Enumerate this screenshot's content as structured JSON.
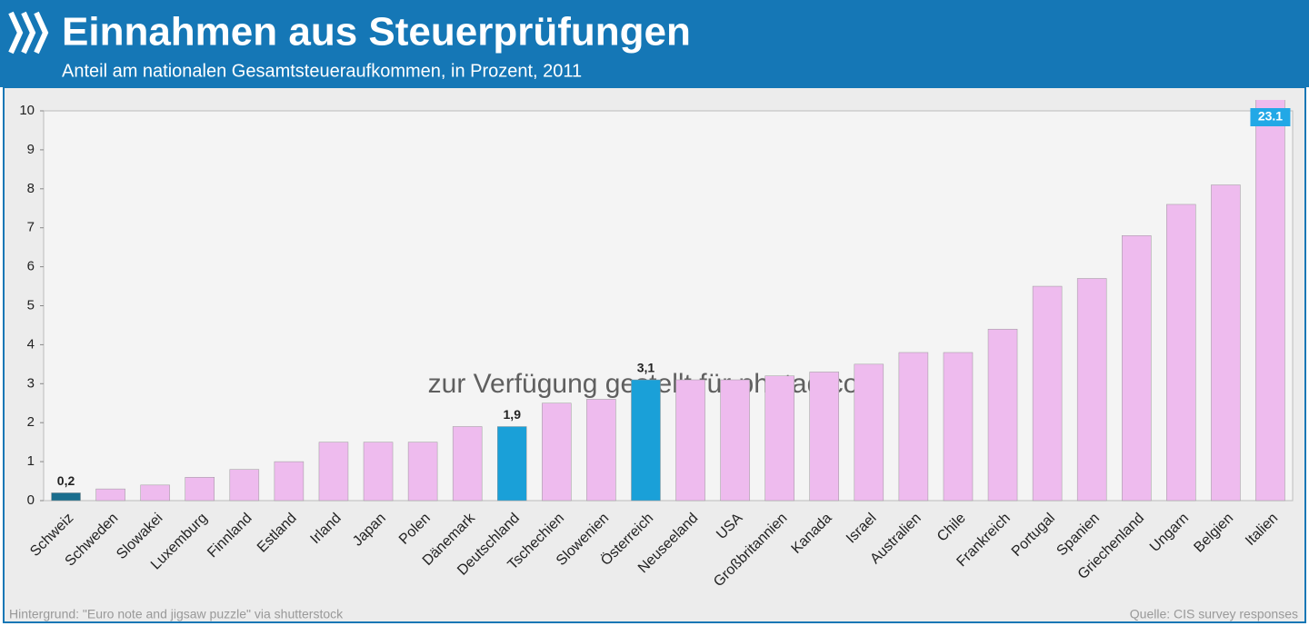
{
  "chart_data": {
    "type": "bar",
    "title": "Einnahmen aus Steuerprüfungen",
    "subtitle": "Anteil am nationalen Gesamtsteueraufkommen, in Prozent, 2011",
    "categories": [
      "Schweiz",
      "Schweden",
      "Slowakei",
      "Luxemburg",
      "Finnland",
      "Estland",
      "Irland",
      "Japan",
      "Polen",
      "Dänemark",
      "Deutschland",
      "Tschechien",
      "Slowenien",
      "Österreich",
      "Neuseeland",
      "USA",
      "Großbritannien",
      "Kanada",
      "Israel",
      "Australien",
      "Chile",
      "Frankreich",
      "Portugal",
      "Spanien",
      "Griechenland",
      "Ungarn",
      "Belgien",
      "Italien"
    ],
    "values": [
      0.2,
      0.3,
      0.4,
      0.6,
      0.8,
      1.0,
      1.5,
      1.5,
      1.5,
      1.9,
      1.9,
      2.5,
      2.6,
      3.1,
      3.1,
      3.1,
      3.2,
      3.3,
      3.5,
      3.8,
      3.8,
      4.4,
      5.5,
      5.7,
      6.8,
      7.6,
      8.1,
      23.1
    ],
    "value_labels": [
      "0,2",
      null,
      null,
      null,
      null,
      null,
      null,
      null,
      null,
      null,
      "1,9",
      null,
      null,
      "3,1",
      null,
      null,
      null,
      null,
      null,
      null,
      null,
      null,
      null,
      null,
      null,
      null,
      null,
      "23.1"
    ],
    "colors": [
      "#1a6e8e",
      "#eebbee",
      "#eebbee",
      "#eebbee",
      "#eebbee",
      "#eebbee",
      "#eebbee",
      "#eebbee",
      "#eebbee",
      "#eebbee",
      "#1aa0d8",
      "#eebbee",
      "#eebbee",
      "#1aa0d8",
      "#eebbee",
      "#eebbee",
      "#eebbee",
      "#eebbee",
      "#eebbee",
      "#eebbee",
      "#eebbee",
      "#eebbee",
      "#eebbee",
      "#eebbee",
      "#eebbee",
      "#eebbee",
      "#eebbee",
      "#eebbee"
    ],
    "ylim": [
      0,
      10
    ],
    "yticks": [
      0,
      1,
      2,
      3,
      4,
      5,
      6,
      7,
      8,
      9,
      10
    ],
    "watermark": "zur Verfügung gestellt für photaq.com",
    "note": "Hintergrund: \"Euro note and jigsaw puzzle\" via shutterstock",
    "source": "Quelle: CIS survey responses"
  }
}
